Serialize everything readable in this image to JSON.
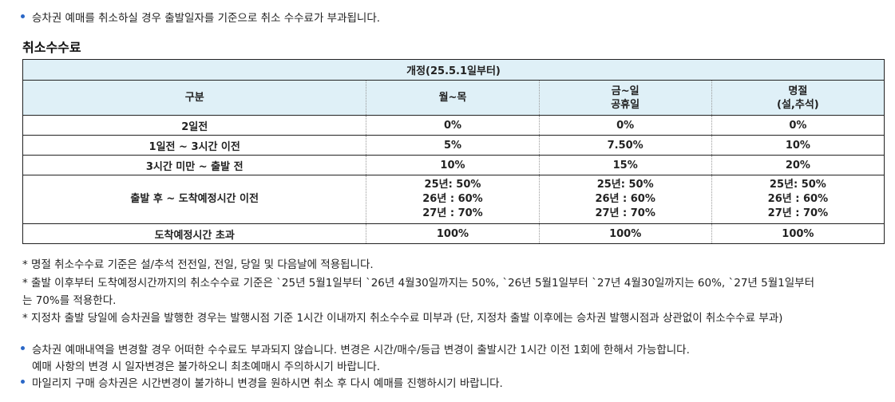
{
  "intro": "승차권 예매를 취소하실 경우 출발일자를 기준으로 취소 수수료가 부과됩니다.",
  "section_title": "취소수수료",
  "table": {
    "banner": "개정(25.5.1일부터)",
    "headers": [
      [
        "구분"
      ],
      [
        "월~목"
      ],
      [
        "금~일",
        "공휴일"
      ],
      [
        "명절",
        "(설,추석)"
      ]
    ],
    "rows": [
      {
        "label": "2일전",
        "values": [
          "0%",
          "0%",
          "0%"
        ]
      },
      {
        "label": "1일전 ~ 3시간 이전",
        "values": [
          "5%",
          "7.50%",
          "10%"
        ]
      },
      {
        "label": "3시간 미만 ~ 출발 전",
        "values": [
          "10%",
          "15%",
          "20%"
        ]
      },
      {
        "label": "출발 후 ~ 도착예정시간 이전",
        "values": [
          [
            "25년: 50%",
            "26년 : 60%",
            "27년 : 70%"
          ],
          [
            "25년: 50%",
            "26년 : 60%",
            "27년 : 70%"
          ],
          [
            "25년: 50%",
            "26년 : 60%",
            "27년 : 70%"
          ]
        ]
      },
      {
        "label": "도착예정시간 초과",
        "values": [
          "100%",
          "100%",
          "100%"
        ]
      }
    ]
  },
  "notes": [
    "* 명절 취소수수료 기준은 설/추석 전전일, 전일, 당일 및 다음날에 적용됩니다.",
    "* 출발 이후부터 도착예정시간까지의 취소수수료 기준은 `25년 5월1일부터 `26년 4월30일까지는 50%, `26년 5월1일부터 `27년 4월30일까지는 60%, `27년 5월1일부터",
    "는 70%를 적용한다.",
    "* 지정차 출발 당일에 승차권을 발행한 경우는 발행시점 기준 1시간 이내까지 취소수수료 미부과 (단, 지정차 출발 이후에는 승차권 발행시점과 상관없이 취소수수료 부과)"
  ],
  "bottom": {
    "change_line1": "승차권 예매내역을 변경할 경우 어떠한 수수료도 부과되지 않습니다. 변경은 시간/매수/등급 변경이 출발시간 1시간 이전 1회에 한해서 가능합니다.",
    "change_line2": "예매 사항의 변경 시 일자변경은 불가하오니 최초예매시 주의하시기 바랍니다.",
    "mileage": "마일리지 구매 승차권은 시간변경이 불가하니 변경을 원하시면 취소 후 다시 예매를 진행하시기 바랍니다."
  },
  "colors": {
    "bullet": "#2a67c7",
    "header_bg": "#dff0f7",
    "border": "#222222"
  }
}
